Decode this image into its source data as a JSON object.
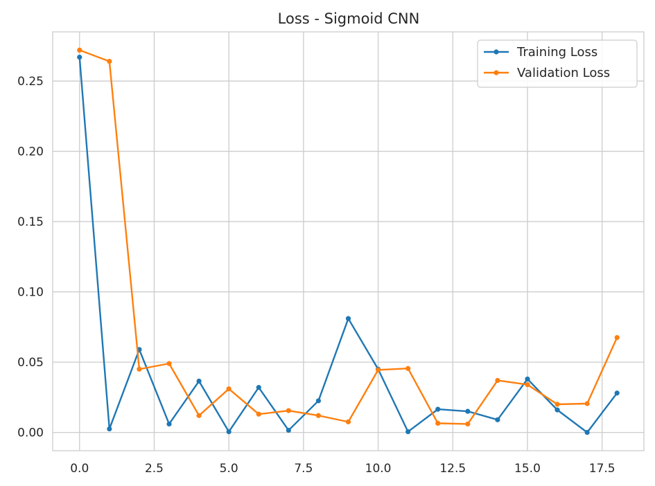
{
  "chart_data": {
    "type": "line",
    "title": "Loss - Sigmoid CNN",
    "xlabel": "",
    "ylabel": "",
    "xlim": [
      -0.9,
      18.9
    ],
    "ylim": [
      -0.013,
      0.285
    ],
    "x_ticks": [
      0,
      2.5,
      5,
      7.5,
      10,
      12.5,
      15,
      17.5
    ],
    "x_tick_labels": [
      "0.0",
      "2.5",
      "5.0",
      "7.5",
      "10.0",
      "12.5",
      "15.0",
      "17.5"
    ],
    "y_ticks": [
      0,
      0.05,
      0.1,
      0.15,
      0.2,
      0.25
    ],
    "y_tick_labels": [
      "0.00",
      "0.05",
      "0.10",
      "0.15",
      "0.20",
      "0.25"
    ],
    "grid": true,
    "legend_position": "top-right",
    "x": [
      0,
      1,
      2,
      3,
      4,
      5,
      6,
      7,
      8,
      9,
      10,
      11,
      12,
      13,
      14,
      15,
      16,
      17,
      18
    ],
    "series": [
      {
        "name": "Training Loss",
        "color": "#1f77b4",
        "values": [
          0.267,
          0.0025,
          0.059,
          0.006,
          0.0365,
          0.0005,
          0.032,
          0.0015,
          0.0225,
          0.081,
          0.045,
          0.0005,
          0.0165,
          0.015,
          0.009,
          0.038,
          0.016,
          0.0,
          0.028
        ]
      },
      {
        "name": "Validation Loss",
        "color": "#ff7f0e",
        "values": [
          0.272,
          0.264,
          0.045,
          0.049,
          0.012,
          0.031,
          0.013,
          0.0155,
          0.012,
          0.0075,
          0.0445,
          0.0455,
          0.0065,
          0.006,
          0.037,
          0.034,
          0.02,
          0.0205,
          0.0675
        ]
      }
    ]
  }
}
